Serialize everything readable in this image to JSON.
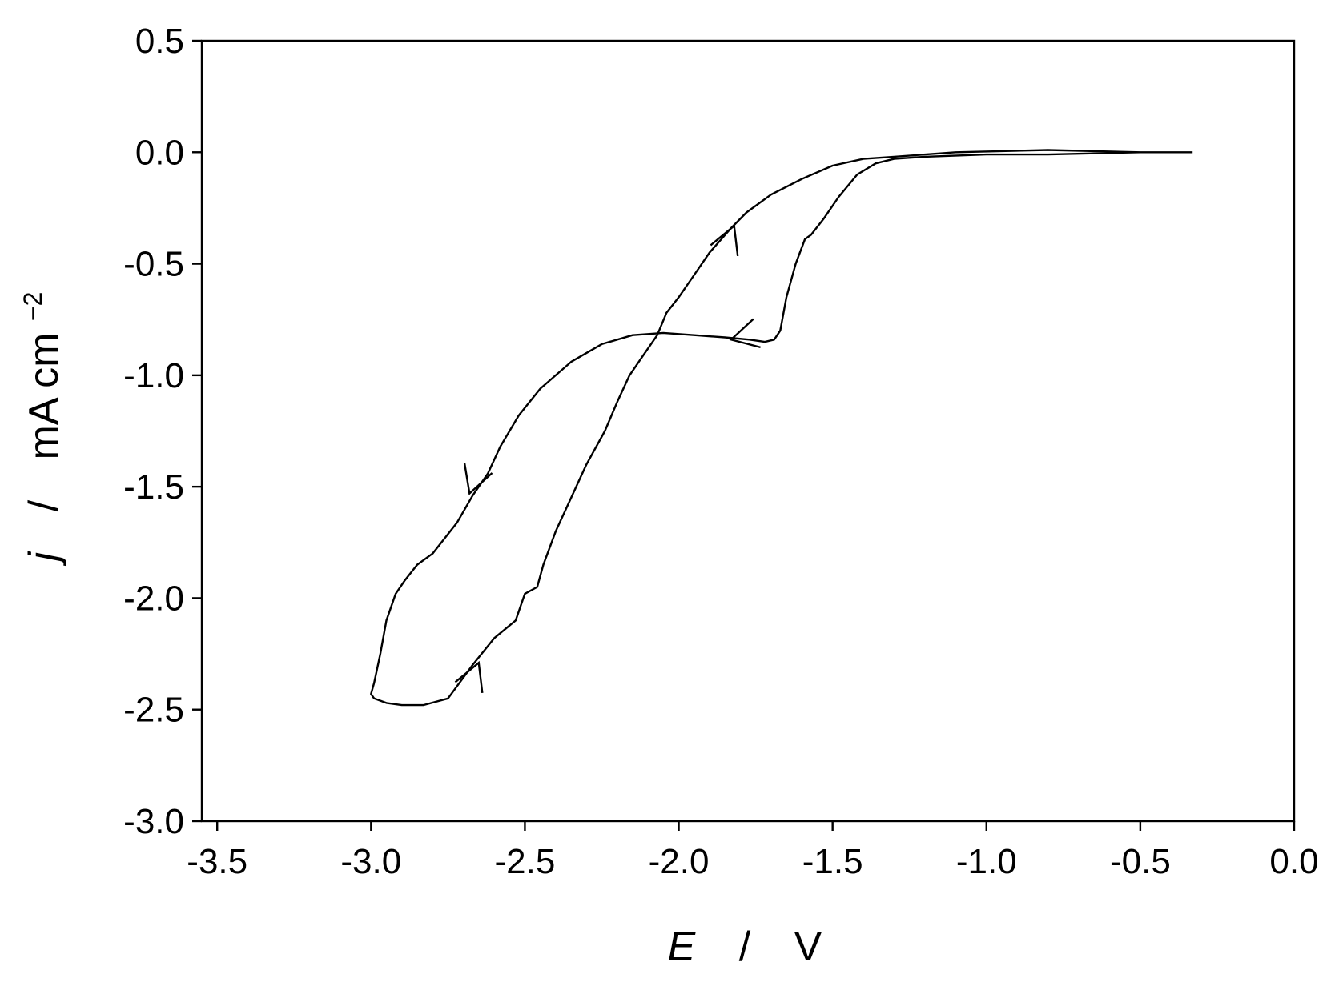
{
  "chart_data": {
    "type": "line",
    "title": "",
    "xlabel": {
      "symbol": "E",
      "separator": "/",
      "unit": "V"
    },
    "ylabel": {
      "symbol": "j",
      "separator": "/",
      "unit": "mA cm",
      "unit_superscript": "−2"
    },
    "xlim": [
      -3.55,
      0.0
    ],
    "ylim": [
      -3.0,
      0.5
    ],
    "x_ticks": [
      -3.5,
      -3.0,
      -2.5,
      -2.0,
      -1.5,
      -1.0,
      -0.5,
      0.0
    ],
    "x_tick_labels": [
      "-3.5",
      "-3.0",
      "-2.5",
      "-2.0",
      "-1.5",
      "-1.0",
      "-0.5",
      "0.0"
    ],
    "y_ticks": [
      0.5,
      0.0,
      -0.5,
      -1.0,
      -1.5,
      -2.0,
      -2.5,
      -3.0
    ],
    "y_tick_labels": [
      "0.5",
      "0.0",
      "-0.5",
      "-1.0",
      "-1.5",
      "-2.0",
      "-2.5",
      "-3.0"
    ],
    "grid": false,
    "legend": "none",
    "line_color": "#000000",
    "series": [
      {
        "x": [
          -0.33,
          -0.5,
          -0.8,
          -1.0,
          -1.2,
          -1.3,
          -1.36,
          -1.42,
          -1.48,
          -1.53,
          -1.57,
          -1.59,
          -1.62,
          -1.65,
          -1.67,
          -1.69,
          -1.72,
          -1.77,
          -1.85,
          -1.95,
          -2.05,
          -2.15,
          -2.25,
          -2.35,
          -2.45,
          -2.52,
          -2.58,
          -2.62,
          -2.67,
          -2.72,
          -2.8,
          -2.85,
          -2.89,
          -2.92,
          -2.95,
          -2.97,
          -2.99,
          -3.0,
          -2.99,
          -2.95,
          -2.9,
          -2.83,
          -2.75,
          -2.67,
          -2.6,
          -2.53,
          -2.5,
          -2.46,
          -2.44,
          -2.4,
          -2.35,
          -2.3,
          -2.24,
          -2.2,
          -2.16,
          -2.12,
          -2.07,
          -2.04,
          -2.0,
          -1.95,
          -1.9,
          -1.83,
          -1.78,
          -1.7,
          -1.6,
          -1.5,
          -1.4,
          -1.3,
          -1.1,
          -0.8,
          -0.5,
          -0.33
        ],
        "y": [
          0.0,
          0.0,
          -0.01,
          -0.01,
          -0.02,
          -0.03,
          -0.05,
          -0.1,
          -0.2,
          -0.3,
          -0.37,
          -0.39,
          -0.5,
          -0.65,
          -0.8,
          -0.84,
          -0.85,
          -0.84,
          -0.83,
          -0.82,
          -0.81,
          -0.82,
          -0.86,
          -0.94,
          -1.06,
          -1.18,
          -1.32,
          -1.44,
          -1.54,
          -1.66,
          -1.8,
          -1.85,
          -1.92,
          -1.98,
          -2.1,
          -2.25,
          -2.38,
          -2.43,
          -2.45,
          -2.47,
          -2.48,
          -2.48,
          -2.45,
          -2.3,
          -2.18,
          -2.1,
          -1.98,
          -1.95,
          -1.85,
          -1.7,
          -1.55,
          -1.4,
          -1.25,
          -1.12,
          -1.0,
          -0.92,
          -0.82,
          -0.72,
          -0.65,
          -0.55,
          -0.45,
          -0.34,
          -0.27,
          -0.19,
          -0.12,
          -0.06,
          -0.03,
          -0.02,
          0.0,
          0.01,
          0.0,
          0.0
        ]
      }
    ],
    "arrows": [
      {
        "x": -1.83,
        "y": -0.84,
        "dir": "left"
      },
      {
        "x": -2.68,
        "y": -1.53,
        "dir": "down"
      },
      {
        "x": -2.65,
        "y": -2.29,
        "dir": "up"
      },
      {
        "x": -1.82,
        "y": -0.33,
        "dir": "up"
      }
    ]
  }
}
